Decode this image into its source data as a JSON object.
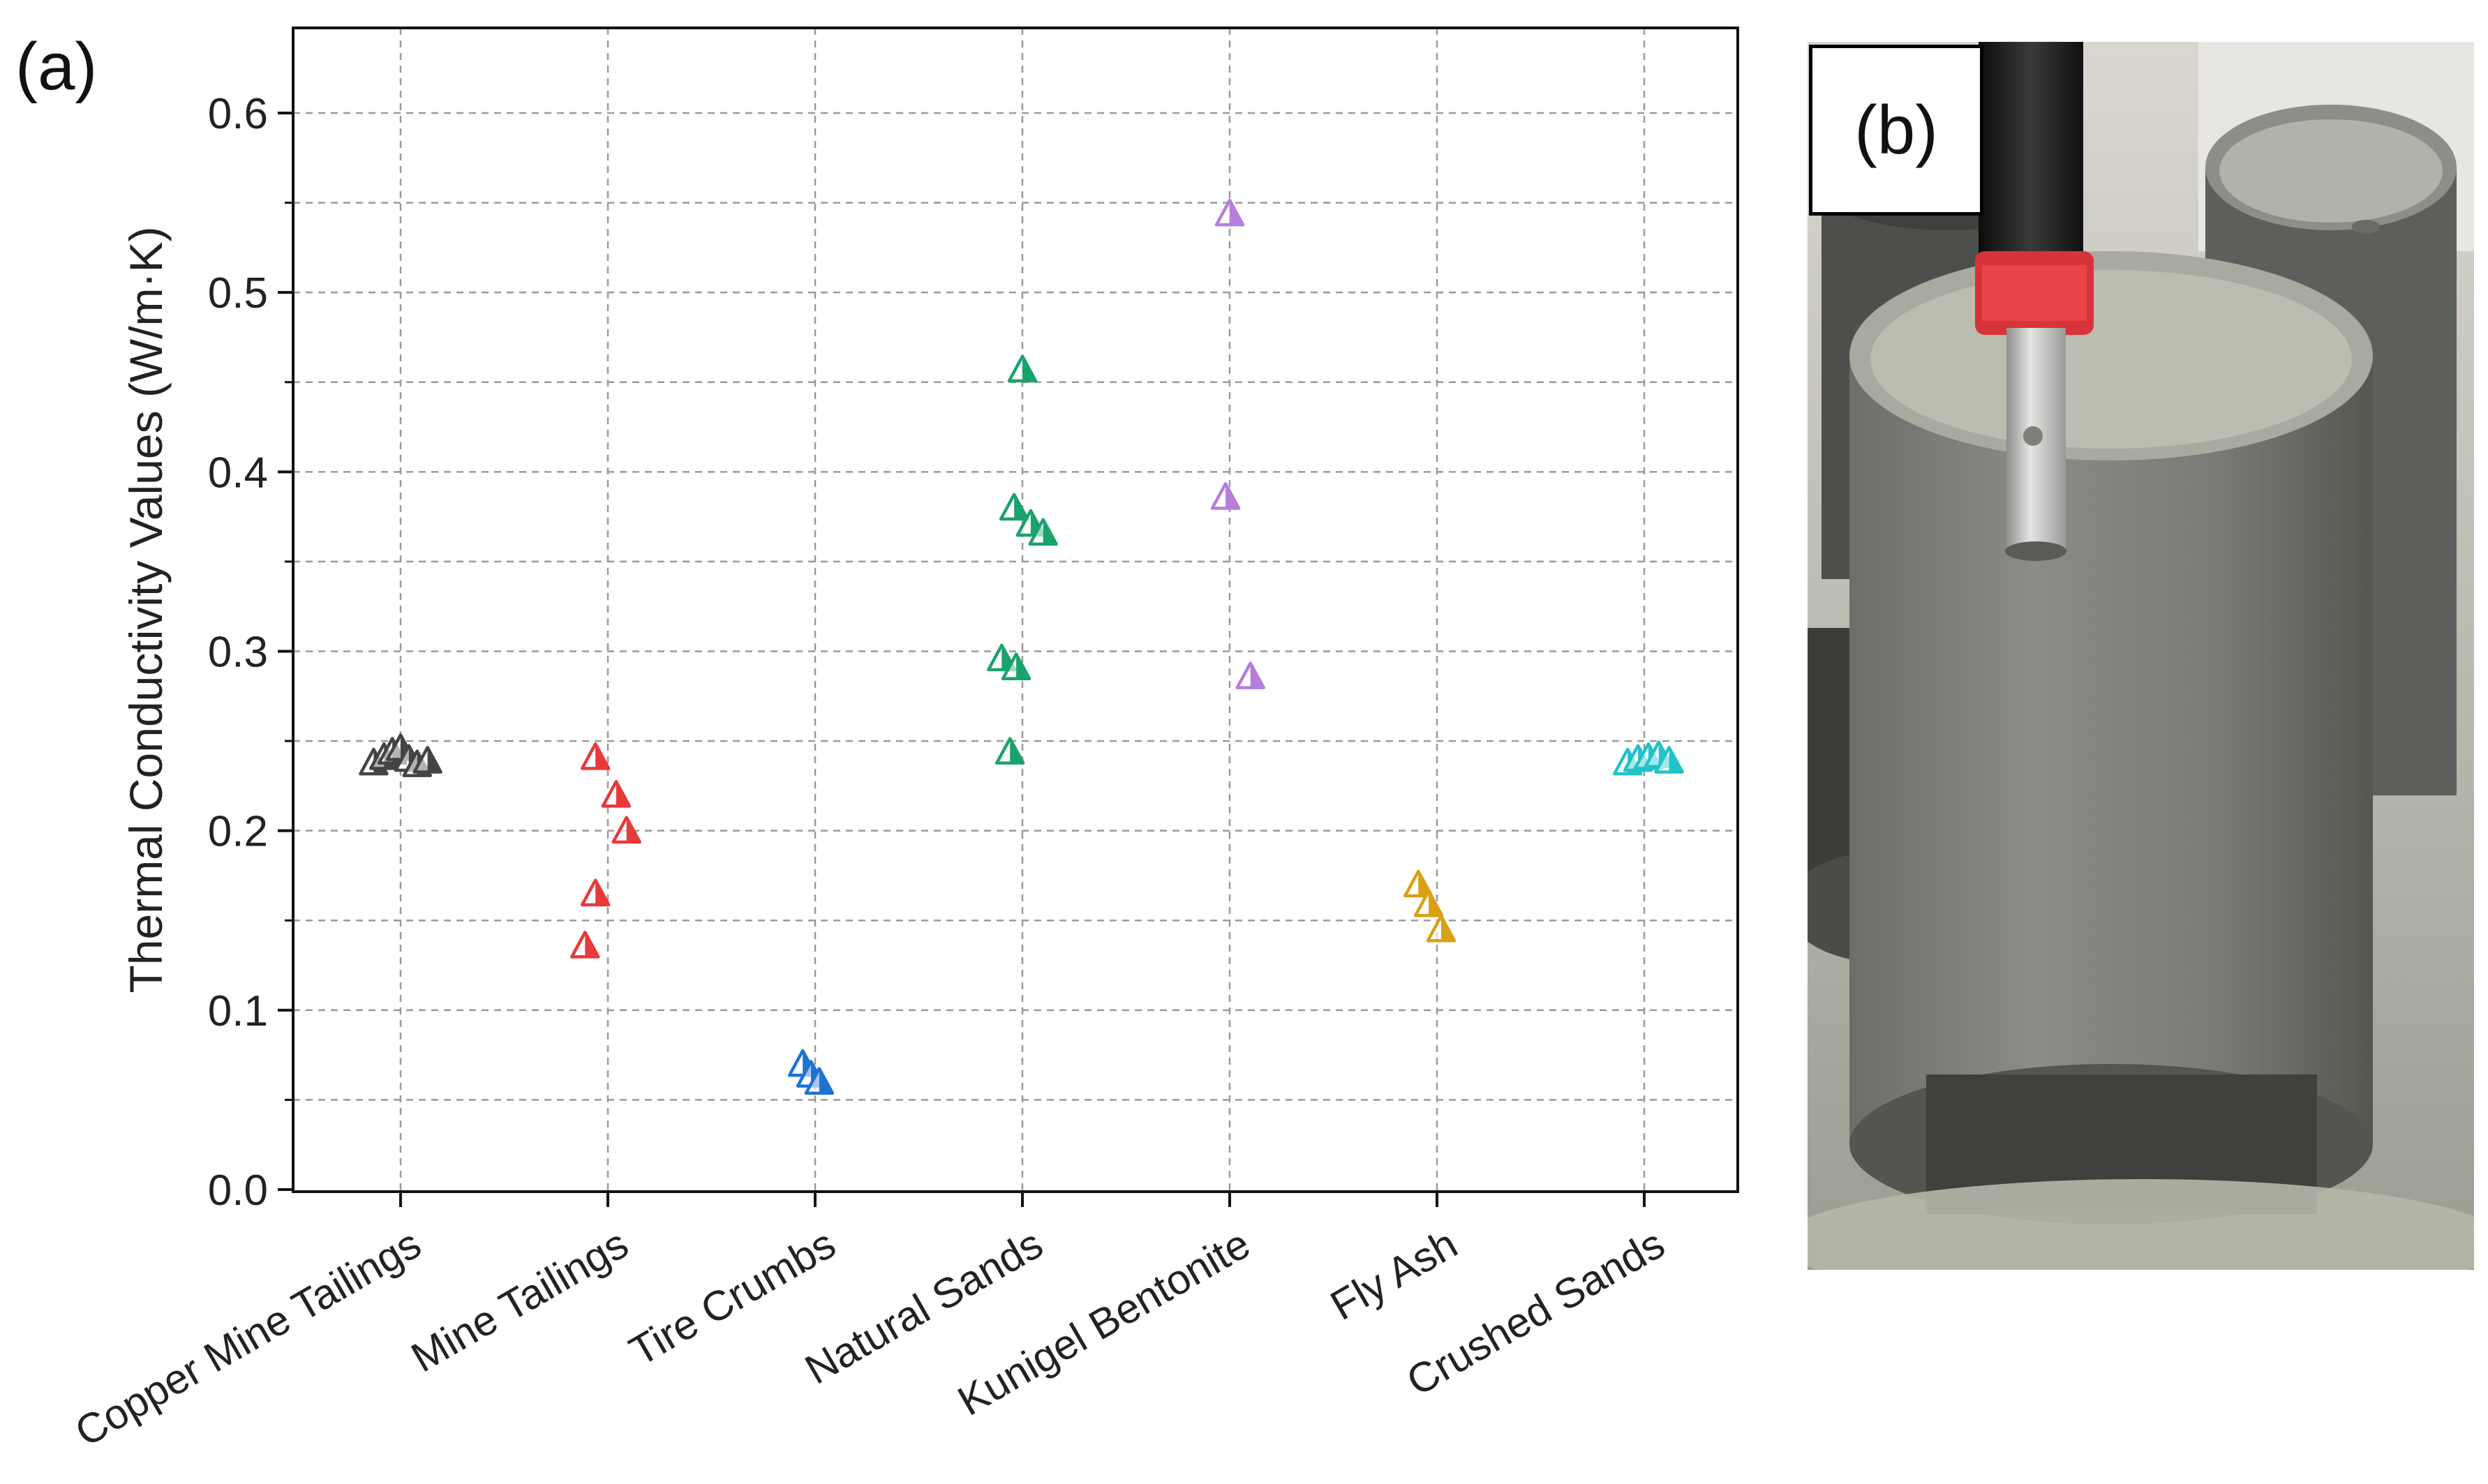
{
  "panel_a_label": "(a)",
  "panel_b_label": "(b)",
  "photo_description": "thermal conductivity probe inserted into a cylindrical soil sample",
  "chart_data": {
    "type": "scatter",
    "title": "",
    "xlabel": "",
    "ylabel": "Thermal Conductivity Values (W/m·K)",
    "ylim": [
      0.0,
      0.65
    ],
    "yticks": [
      0.0,
      0.1,
      0.2,
      0.3,
      0.4,
      0.5,
      0.6
    ],
    "ytick_labels": [
      "0.0",
      "0.1",
      "0.2",
      "0.3",
      "0.4",
      "0.5",
      "0.6"
    ],
    "grid": true,
    "marker": "open-triangle",
    "categories": [
      "Copper Mine Tailings",
      "Mine Tailings",
      "Tire Crumbs",
      "Natural Sands",
      "Kunigel Bentonite",
      "Fly Ash",
      "Crushed Sands"
    ],
    "series": [
      {
        "name": "Copper Mine Tailings",
        "color": "#444444",
        "points": [
          {
            "x": -0.13,
            "y": 0.238
          },
          {
            "x": -0.08,
            "y": 0.241
          },
          {
            "x": -0.04,
            "y": 0.244
          },
          {
            "x": 0.0,
            "y": 0.246
          },
          {
            "x": 0.04,
            "y": 0.24
          },
          {
            "x": 0.08,
            "y": 0.237
          },
          {
            "x": 0.13,
            "y": 0.239
          }
        ]
      },
      {
        "name": "Mine Tailings",
        "color": "#e8393b",
        "points": [
          {
            "x": -0.06,
            "y": 0.241
          },
          {
            "x": 0.04,
            "y": 0.22
          },
          {
            "x": 0.09,
            "y": 0.2
          },
          {
            "x": -0.06,
            "y": 0.165
          },
          {
            "x": -0.11,
            "y": 0.136
          }
        ]
      },
      {
        "name": "Tire Crumbs",
        "color": "#1e73d2",
        "points": [
          {
            "x": -0.06,
            "y": 0.07
          },
          {
            "x": -0.02,
            "y": 0.064
          },
          {
            "x": 0.02,
            "y": 0.06
          }
        ]
      },
      {
        "name": "Natural Sands",
        "color": "#1aa36b",
        "points": [
          {
            "x": 0.0,
            "y": 0.457
          },
          {
            "x": -0.04,
            "y": 0.38
          },
          {
            "x": 0.04,
            "y": 0.371
          },
          {
            "x": 0.1,
            "y": 0.366
          },
          {
            "x": -0.1,
            "y": 0.296
          },
          {
            "x": -0.03,
            "y": 0.291
          },
          {
            "x": -0.06,
            "y": 0.244
          }
        ]
      },
      {
        "name": "Kunigel Bentonite",
        "color": "#b57edc",
        "points": [
          {
            "x": 0.0,
            "y": 0.544
          },
          {
            "x": -0.02,
            "y": 0.386
          },
          {
            "x": 0.1,
            "y": 0.286
          }
        ]
      },
      {
        "name": "Fly Ash",
        "color": "#d9a014",
        "points": [
          {
            "x": -0.09,
            "y": 0.17
          },
          {
            "x": -0.04,
            "y": 0.159
          },
          {
            "x": 0.02,
            "y": 0.145
          }
        ]
      },
      {
        "name": "Crushed Sands",
        "color": "#1fc3c9",
        "points": [
          {
            "x": -0.08,
            "y": 0.238
          },
          {
            "x": -0.03,
            "y": 0.24
          },
          {
            "x": 0.02,
            "y": 0.241
          },
          {
            "x": 0.07,
            "y": 0.242
          },
          {
            "x": 0.12,
            "y": 0.239
          }
        ]
      }
    ]
  }
}
